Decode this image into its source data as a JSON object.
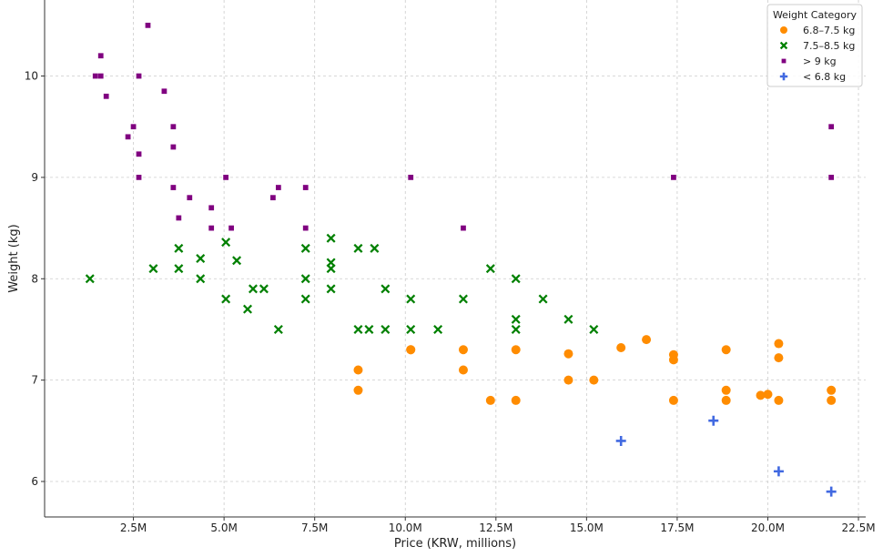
{
  "chart_data": {
    "type": "scatter",
    "xlabel": "Price (KRW, millions)",
    "ylabel": "Weight (kg)",
    "xlim": [
      0.05,
      22.7
    ],
    "ylim": [
      5.65,
      10.75
    ],
    "x_ticks": [
      2.5,
      5.0,
      7.5,
      10.0,
      12.5,
      15.0,
      17.5,
      20.0,
      22.5
    ],
    "x_tick_labels": [
      "2.5M",
      "5.0M",
      "7.5M",
      "10.0M",
      "12.5M",
      "15.0M",
      "17.5M",
      "20.0M",
      "22.5M"
    ],
    "y_ticks": [
      6,
      7,
      8,
      9,
      10
    ],
    "y_tick_labels": [
      "6",
      "7",
      "8",
      "9",
      "10"
    ],
    "grid": true,
    "legend": {
      "title": "Weight Category",
      "position": "top-right"
    },
    "series": [
      {
        "name": "6.8–7.5 kg",
        "color": "#ff8c00",
        "marker": "circle",
        "points": [
          [
            8.7,
            7.1
          ],
          [
            8.7,
            6.9
          ],
          [
            10.15,
            7.3
          ],
          [
            10.15,
            7.3
          ],
          [
            11.6,
            7.3
          ],
          [
            11.6,
            7.1
          ],
          [
            12.35,
            6.8
          ],
          [
            13.05,
            7.3
          ],
          [
            13.05,
            6.8
          ],
          [
            14.5,
            7.26
          ],
          [
            14.5,
            7.0
          ],
          [
            15.2,
            7.0
          ],
          [
            15.95,
            7.32
          ],
          [
            16.65,
            7.4
          ],
          [
            17.4,
            7.25
          ],
          [
            17.4,
            7.2
          ],
          [
            17.4,
            6.8
          ],
          [
            18.85,
            7.3
          ],
          [
            18.85,
            6.9
          ],
          [
            18.85,
            6.8
          ],
          [
            19.8,
            6.85
          ],
          [
            20.0,
            6.86
          ],
          [
            20.3,
            7.36
          ],
          [
            20.3,
            7.22
          ],
          [
            20.3,
            6.8
          ],
          [
            21.75,
            6.9
          ],
          [
            21.75,
            6.8
          ]
        ]
      },
      {
        "name": "7.5–8.5 kg",
        "color": "#008000",
        "marker": "x",
        "points": [
          [
            1.3,
            8.0
          ],
          [
            3.05,
            8.1
          ],
          [
            3.75,
            8.3
          ],
          [
            3.75,
            8.1
          ],
          [
            4.35,
            8.2
          ],
          [
            4.35,
            8.0
          ],
          [
            5.05,
            8.36
          ],
          [
            5.05,
            7.8
          ],
          [
            5.35,
            8.18
          ],
          [
            5.65,
            7.7
          ],
          [
            5.8,
            7.9
          ],
          [
            6.1,
            7.9
          ],
          [
            6.5,
            7.5
          ],
          [
            7.25,
            8.3
          ],
          [
            7.25,
            8.0
          ],
          [
            7.25,
            7.8
          ],
          [
            7.95,
            8.4
          ],
          [
            7.95,
            8.16
          ],
          [
            7.95,
            8.1
          ],
          [
            7.95,
            7.9
          ],
          [
            8.7,
            8.3
          ],
          [
            8.7,
            7.5
          ],
          [
            9.0,
            7.5
          ],
          [
            9.15,
            8.3
          ],
          [
            9.45,
            7.9
          ],
          [
            9.45,
            7.5
          ],
          [
            10.15,
            7.8
          ],
          [
            10.15,
            7.5
          ],
          [
            10.9,
            7.5
          ],
          [
            11.6,
            7.8
          ],
          [
            12.35,
            8.1
          ],
          [
            13.05,
            8.0
          ],
          [
            13.05,
            7.6
          ],
          [
            13.05,
            7.5
          ],
          [
            13.8,
            7.8
          ],
          [
            14.5,
            7.6
          ],
          [
            15.2,
            7.5
          ]
        ]
      },
      {
        "name": "> 9 kg",
        "color": "#800080",
        "marker": "square",
        "points": [
          [
            1.45,
            10.0
          ],
          [
            1.6,
            10.2
          ],
          [
            1.6,
            10.0
          ],
          [
            1.75,
            9.8
          ],
          [
            2.35,
            9.4
          ],
          [
            2.5,
            9.5
          ],
          [
            2.65,
            10.0
          ],
          [
            2.65,
            9.23
          ],
          [
            2.65,
            9.0
          ],
          [
            2.9,
            10.5
          ],
          [
            3.35,
            9.85
          ],
          [
            3.6,
            9.5
          ],
          [
            3.6,
            9.3
          ],
          [
            3.6,
            8.9
          ],
          [
            3.75,
            8.6
          ],
          [
            4.05,
            8.8
          ],
          [
            4.65,
            8.7
          ],
          [
            4.65,
            8.5
          ],
          [
            5.05,
            9.0
          ],
          [
            5.2,
            8.5
          ],
          [
            6.35,
            8.8
          ],
          [
            6.5,
            8.9
          ],
          [
            7.25,
            8.9
          ],
          [
            7.25,
            8.5
          ],
          [
            10.15,
            9.0
          ],
          [
            11.6,
            8.5
          ],
          [
            17.4,
            9.0
          ],
          [
            21.75,
            9.5
          ],
          [
            21.75,
            9.0
          ]
        ]
      },
      {
        "name": "< 6.8 kg",
        "color": "#4169e1",
        "marker": "plus",
        "points": [
          [
            15.95,
            6.4
          ],
          [
            18.5,
            6.6
          ],
          [
            20.3,
            6.1
          ],
          [
            21.75,
            5.9
          ]
        ]
      }
    ]
  }
}
